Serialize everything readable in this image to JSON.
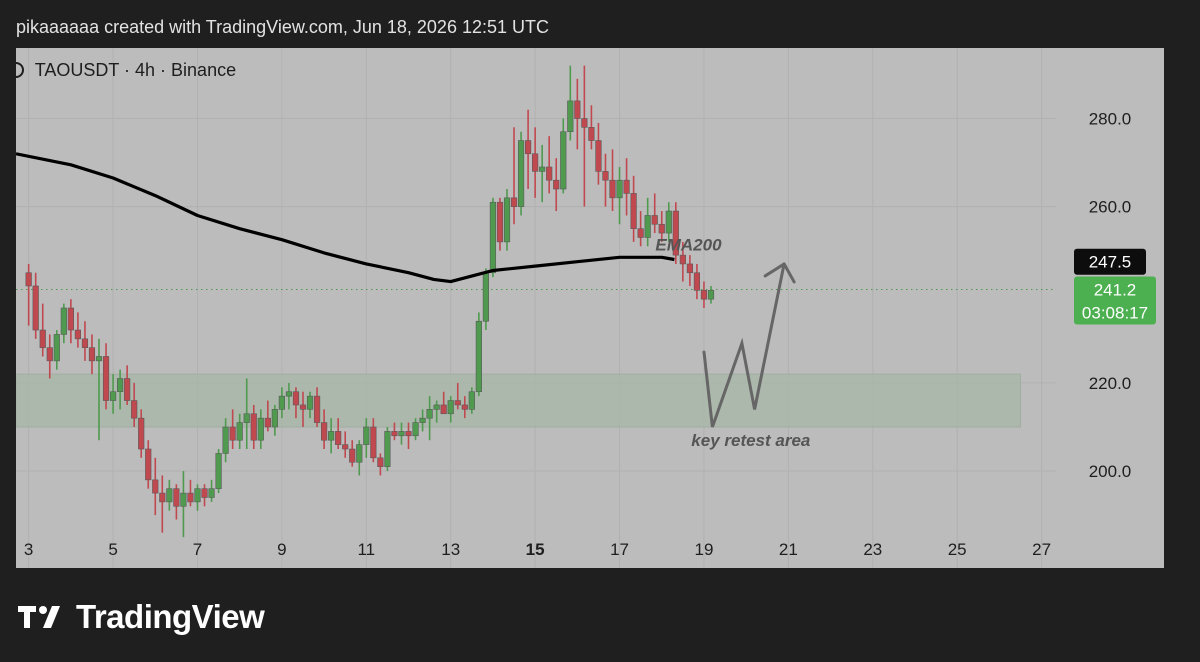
{
  "header": {
    "text": "pikaaaaaa created with TradingView.com, Jun 18, 2026 12:51 UTC"
  },
  "symbol": {
    "text": "TAOUSDT · 4h · Binance"
  },
  "branding": {
    "logo_icon": "tradingview-logo-icon",
    "wordmark": "TradingView"
  },
  "colors": {
    "up": "#4f9a4f",
    "down": "#c0484f",
    "ema": "#000000",
    "zone": "#a7b7a7",
    "background": "#bcbcbc"
  },
  "chart_data": {
    "type": "candlestick",
    "symbol": "TAOUSDT",
    "timeframe": "4h",
    "exchange": "Binance",
    "y_ticks": [
      "280.0",
      "260.0",
      "220.0",
      "200.0"
    ],
    "x_ticks": [
      "3",
      "5",
      "7",
      "9",
      "11",
      "13",
      "15",
      "17",
      "19",
      "21",
      "23",
      "25",
      "27"
    ],
    "x_bold": "15",
    "ylim": [
      178,
      296
    ],
    "xlim": [
      2.7,
      29.9
    ],
    "ema": {
      "label": "EMA200",
      "value": "247.5",
      "points": [
        [
          2.7,
          272
        ],
        [
          4,
          269.5
        ],
        [
          5,
          266.5
        ],
        [
          6,
          262.5
        ],
        [
          7,
          258
        ],
        [
          8,
          255
        ],
        [
          9,
          252.5
        ],
        [
          10,
          249.5
        ],
        [
          11,
          247
        ],
        [
          12,
          245
        ],
        [
          12.6,
          243.5
        ],
        [
          13,
          243
        ],
        [
          13.6,
          244.5
        ],
        [
          14,
          245.5
        ],
        [
          15,
          246.5
        ],
        [
          16,
          247.5
        ],
        [
          17,
          248.5
        ],
        [
          18,
          248.5
        ],
        [
          18.3,
          248
        ]
      ]
    },
    "price": {
      "value": "241.2",
      "countdown": "03:08:17"
    },
    "zone": {
      "label": "key retest area",
      "low": 210,
      "high": 222,
      "x_end": 26.5
    },
    "arrow_path": [
      [
        19.0,
        227
      ],
      [
        19.2,
        210
      ],
      [
        19.9,
        229
      ],
      [
        20.2,
        214
      ],
      [
        20.9,
        247
      ]
    ],
    "candles": [
      {
        "o": 245,
        "h": 247,
        "l": 233,
        "c": 242
      },
      {
        "o": 242,
        "h": 245,
        "l": 230,
        "c": 232
      },
      {
        "o": 232,
        "h": 238,
        "l": 226,
        "c": 228
      },
      {
        "o": 228,
        "h": 231,
        "l": 221,
        "c": 225
      },
      {
        "o": 225,
        "h": 232,
        "l": 223,
        "c": 231
      },
      {
        "o": 231,
        "h": 238,
        "l": 229,
        "c": 237
      },
      {
        "o": 237,
        "h": 239,
        "l": 229,
        "c": 232
      },
      {
        "o": 232,
        "h": 236,
        "l": 228,
        "c": 230
      },
      {
        "o": 230,
        "h": 234,
        "l": 225,
        "c": 228
      },
      {
        "o": 228,
        "h": 231,
        "l": 222,
        "c": 225
      },
      {
        "o": 225,
        "h": 230,
        "l": 207,
        "c": 226
      },
      {
        "o": 226,
        "h": 229,
        "l": 214,
        "c": 216
      },
      {
        "o": 216,
        "h": 222,
        "l": 213,
        "c": 218
      },
      {
        "o": 218,
        "h": 223,
        "l": 214,
        "c": 221
      },
      {
        "o": 221,
        "h": 224,
        "l": 215,
        "c": 216
      },
      {
        "o": 216,
        "h": 220,
        "l": 210,
        "c": 212
      },
      {
        "o": 212,
        "h": 214,
        "l": 203,
        "c": 205
      },
      {
        "o": 205,
        "h": 207,
        "l": 196,
        "c": 198
      },
      {
        "o": 198,
        "h": 203,
        "l": 190,
        "c": 195
      },
      {
        "o": 195,
        "h": 199,
        "l": 186,
        "c": 193
      },
      {
        "o": 193,
        "h": 198,
        "l": 191,
        "c": 196
      },
      {
        "o": 196,
        "h": 197,
        "l": 189,
        "c": 192
      },
      {
        "o": 192,
        "h": 200,
        "l": 185,
        "c": 195
      },
      {
        "o": 195,
        "h": 198,
        "l": 192,
        "c": 193
      },
      {
        "o": 193,
        "h": 197,
        "l": 191,
        "c": 196
      },
      {
        "o": 196,
        "h": 197,
        "l": 192,
        "c": 194
      },
      {
        "o": 194,
        "h": 198,
        "l": 193,
        "c": 196
      },
      {
        "o": 196,
        "h": 205,
        "l": 195,
        "c": 204
      },
      {
        "o": 204,
        "h": 212,
        "l": 202,
        "c": 210
      },
      {
        "o": 210,
        "h": 214,
        "l": 205,
        "c": 207
      },
      {
        "o": 207,
        "h": 213,
        "l": 205,
        "c": 211
      },
      {
        "o": 211,
        "h": 221,
        "l": 205,
        "c": 213
      },
      {
        "o": 213,
        "h": 215,
        "l": 205,
        "c": 207
      },
      {
        "o": 207,
        "h": 214,
        "l": 205,
        "c": 212
      },
      {
        "o": 212,
        "h": 216,
        "l": 209,
        "c": 210
      },
      {
        "o": 210,
        "h": 215,
        "l": 208,
        "c": 214
      },
      {
        "o": 214,
        "h": 219,
        "l": 212,
        "c": 217
      },
      {
        "o": 217,
        "h": 220,
        "l": 214,
        "c": 218
      },
      {
        "o": 218,
        "h": 219,
        "l": 212,
        "c": 215
      },
      {
        "o": 215,
        "h": 218,
        "l": 210,
        "c": 214
      },
      {
        "o": 214,
        "h": 218,
        "l": 212,
        "c": 217
      },
      {
        "o": 217,
        "h": 219,
        "l": 210,
        "c": 211
      },
      {
        "o": 211,
        "h": 214,
        "l": 205,
        "c": 207
      },
      {
        "o": 207,
        "h": 212,
        "l": 204,
        "c": 209
      },
      {
        "o": 209,
        "h": 212,
        "l": 205,
        "c": 206
      },
      {
        "o": 206,
        "h": 209,
        "l": 203,
        "c": 205
      },
      {
        "o": 205,
        "h": 207,
        "l": 201,
        "c": 202
      },
      {
        "o": 202,
        "h": 207,
        "l": 199,
        "c": 206
      },
      {
        "o": 206,
        "h": 212,
        "l": 203,
        "c": 210
      },
      {
        "o": 210,
        "h": 212,
        "l": 202,
        "c": 203
      },
      {
        "o": 203,
        "h": 204,
        "l": 199,
        "c": 201
      },
      {
        "o": 201,
        "h": 210,
        "l": 200,
        "c": 209
      },
      {
        "o": 209,
        "h": 211,
        "l": 207,
        "c": 208
      },
      {
        "o": 208,
        "h": 211,
        "l": 206,
        "c": 209
      },
      {
        "o": 209,
        "h": 211,
        "l": 205,
        "c": 208
      },
      {
        "o": 208,
        "h": 212,
        "l": 207,
        "c": 211
      },
      {
        "o": 211,
        "h": 214,
        "l": 209,
        "c": 212
      },
      {
        "o": 212,
        "h": 217,
        "l": 207,
        "c": 214
      },
      {
        "o": 214,
        "h": 216,
        "l": 211,
        "c": 215
      },
      {
        "o": 215,
        "h": 218,
        "l": 213,
        "c": 213
      },
      {
        "o": 213,
        "h": 217,
        "l": 211,
        "c": 216
      },
      {
        "o": 216,
        "h": 220,
        "l": 214,
        "c": 215
      },
      {
        "o": 215,
        "h": 217,
        "l": 212,
        "c": 214
      },
      {
        "o": 214,
        "h": 219,
        "l": 213,
        "c": 218
      },
      {
        "o": 218,
        "h": 236,
        "l": 217,
        "c": 234
      },
      {
        "o": 234,
        "h": 246,
        "l": 232,
        "c": 245
      },
      {
        "o": 245,
        "h": 262,
        "l": 244,
        "c": 261
      },
      {
        "o": 261,
        "h": 262,
        "l": 250,
        "c": 252
      },
      {
        "o": 252,
        "h": 264,
        "l": 250,
        "c": 262
      },
      {
        "o": 262,
        "h": 278,
        "l": 256,
        "c": 260
      },
      {
        "o": 260,
        "h": 277,
        "l": 258,
        "c": 275
      },
      {
        "o": 275,
        "h": 282,
        "l": 264,
        "c": 272
      },
      {
        "o": 272,
        "h": 278,
        "l": 262,
        "c": 268
      },
      {
        "o": 268,
        "h": 274,
        "l": 261,
        "c": 269
      },
      {
        "o": 269,
        "h": 276,
        "l": 263,
        "c": 266
      },
      {
        "o": 266,
        "h": 271,
        "l": 259,
        "c": 264
      },
      {
        "o": 264,
        "h": 280,
        "l": 263,
        "c": 277
      },
      {
        "o": 277,
        "h": 292,
        "l": 275,
        "c": 284
      },
      {
        "o": 284,
        "h": 289,
        "l": 273,
        "c": 280
      },
      {
        "o": 280,
        "h": 292,
        "l": 260,
        "c": 278
      },
      {
        "o": 278,
        "h": 283,
        "l": 273,
        "c": 275
      },
      {
        "o": 275,
        "h": 279,
        "l": 265,
        "c": 268
      },
      {
        "o": 268,
        "h": 272,
        "l": 260,
        "c": 266
      },
      {
        "o": 266,
        "h": 273,
        "l": 259,
        "c": 262
      },
      {
        "o": 262,
        "h": 269,
        "l": 256,
        "c": 266
      },
      {
        "o": 266,
        "h": 271,
        "l": 258,
        "c": 263
      },
      {
        "o": 263,
        "h": 267,
        "l": 252,
        "c": 255
      },
      {
        "o": 255,
        "h": 259,
        "l": 251,
        "c": 253
      },
      {
        "o": 253,
        "h": 262,
        "l": 251,
        "c": 258
      },
      {
        "o": 258,
        "h": 263,
        "l": 254,
        "c": 256
      },
      {
        "o": 256,
        "h": 259,
        "l": 252,
        "c": 254
      },
      {
        "o": 254,
        "h": 261,
        "l": 252,
        "c": 259
      },
      {
        "o": 259,
        "h": 261,
        "l": 247,
        "c": 249
      },
      {
        "o": 249,
        "h": 252,
        "l": 243,
        "c": 247
      },
      {
        "o": 247,
        "h": 249,
        "l": 242,
        "c": 245
      },
      {
        "o": 245,
        "h": 247,
        "l": 239,
        "c": 241
      },
      {
        "o": 241,
        "h": 243,
        "l": 237,
        "c": 239
      },
      {
        "o": 239,
        "h": 242,
        "l": 238,
        "c": 241
      }
    ]
  }
}
